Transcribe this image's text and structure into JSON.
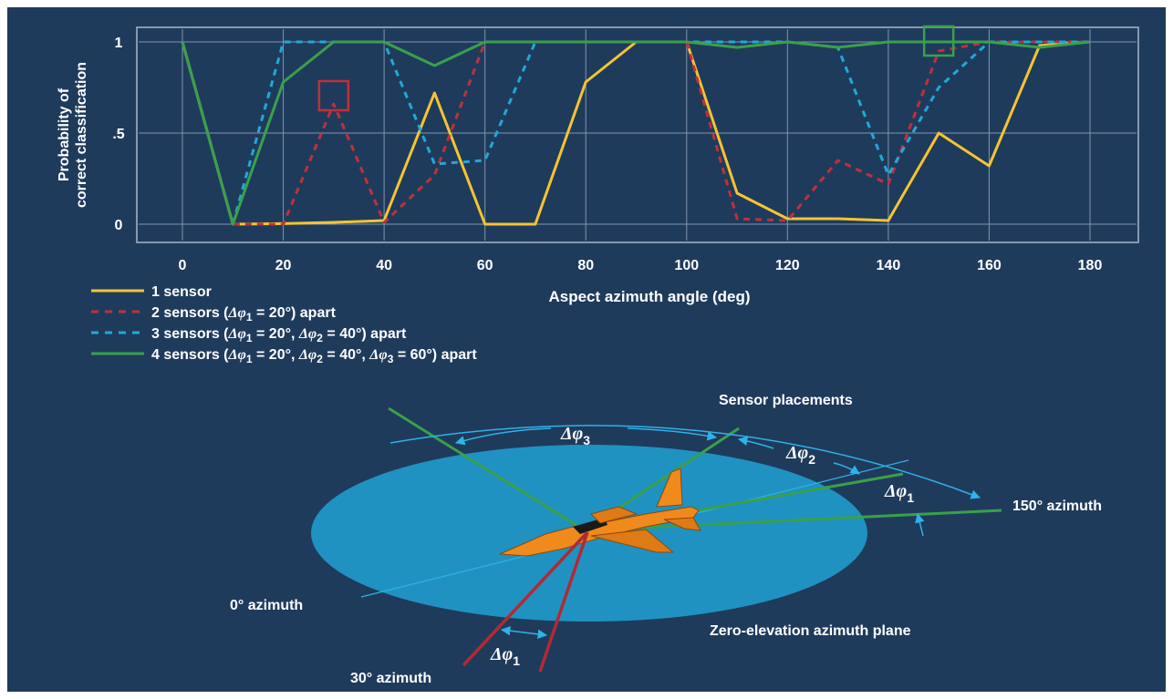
{
  "chart_data": {
    "type": "line",
    "ylabel_lines": [
      "Probability of",
      "correct classification"
    ],
    "xlabel": "Aspect azimuth angle (deg)",
    "ylim": [
      0,
      1
    ],
    "xlim": [
      0,
      180
    ],
    "x_ticks": [
      "0",
      "20",
      "40",
      "60",
      "80",
      "100",
      "120",
      "140",
      "160",
      "180"
    ],
    "y_ticks": [
      "0",
      ".5",
      "1"
    ],
    "grid": true,
    "series": [
      {
        "name": "1 sensor",
        "color": "#f4c433",
        "dash": "solid",
        "x": [
          0,
          10,
          20,
          30,
          40,
          50,
          60,
          70,
          80,
          90,
          100,
          110,
          120,
          130,
          140,
          150,
          160,
          170,
          180
        ],
        "y": [
          1,
          0,
          0.003,
          0.01,
          0.02,
          0.72,
          0,
          0,
          0.78,
          1,
          1,
          0.17,
          0.03,
          0.03,
          0.02,
          0.5,
          0.32,
          0.98,
          1
        ]
      },
      {
        "name": "2 sensors",
        "color": "#c0303a",
        "dash": "dashed",
        "x": [
          0,
          10,
          20,
          30,
          40,
          50,
          60,
          70,
          80,
          90,
          100,
          110,
          120,
          130,
          140,
          150,
          160,
          170,
          180
        ],
        "y": [
          1,
          0,
          0,
          0.66,
          0.01,
          0.27,
          1,
          1,
          1,
          1,
          1,
          0.03,
          0.02,
          0.35,
          0.22,
          0.95,
          1,
          1,
          1
        ]
      },
      {
        "name": "3 sensors",
        "color": "#21a8d8",
        "dash": "dashed",
        "x": [
          0,
          10,
          20,
          30,
          40,
          50,
          60,
          70,
          80,
          90,
          100,
          110,
          120,
          130,
          140,
          150,
          160,
          170,
          180
        ],
        "y": [
          1,
          0,
          1,
          1,
          1,
          0.33,
          0.35,
          1,
          1,
          1,
          1,
          1,
          1,
          0.97,
          0.27,
          0.75,
          1,
          1,
          1
        ]
      },
      {
        "name": "4 sensors",
        "color": "#3aa04a",
        "dash": "solid",
        "x": [
          0,
          10,
          20,
          30,
          40,
          50,
          60,
          70,
          80,
          90,
          100,
          110,
          120,
          130,
          140,
          150,
          160,
          170,
          180
        ],
        "y": [
          1,
          0,
          0.78,
          1,
          1,
          0.87,
          1,
          1,
          1,
          1,
          1,
          0.97,
          1,
          0.97,
          1,
          1,
          1,
          0.97,
          1
        ]
      }
    ],
    "legend": {
      "placement": "bottom-left",
      "entries": [
        {
          "series": 0,
          "text": "1 sensor"
        },
        {
          "series": 1,
          "pre": "2 sensors (",
          "p1_sym": "Δφ",
          "p1_sub": "1",
          "p1_val": " = 20°) apart"
        },
        {
          "series": 2,
          "pre": "3 sensors (",
          "p1_sym": "Δφ",
          "p1_sub": "1",
          "p1_val": " = 20°, ",
          "p2_sym": "Δφ",
          "p2_sub": "2",
          "p2_val": " = 40°) apart"
        },
        {
          "series": 3,
          "pre": "4 sensors (",
          "p1_sym": "Δφ",
          "p1_sub": "1",
          "p1_val": " = 20°, ",
          "p2_sym": "Δφ",
          "p2_sub": "2",
          "p2_val": " = 40°, ",
          "p3_sym": "Δφ",
          "p3_sub": "3",
          "p3_val": " = 60°) apart"
        }
      ]
    },
    "highlights": [
      {
        "x": 30,
        "y": 0.7,
        "color": "#c0303a"
      },
      {
        "x": 150,
        "y": 1.0,
        "color": "#3aa04a"
      }
    ]
  },
  "diagram": {
    "title": "Sensor placements",
    "plane_label": "Zero-elevation azimuth plane",
    "azimuth_labels": {
      "zero": "0° azimuth",
      "thirty": "30° azimuth",
      "one_fifty": "150° azimuth"
    },
    "delta_symbol": "Δφ",
    "delta_subs": {
      "one": "1",
      "two": "2",
      "three": "3"
    },
    "colors": {
      "plane": "#1f9ccc",
      "sensor_green": "#3aa04a",
      "sensor_red": "#b02a36",
      "arrow": "#2fb2e8",
      "aircraft": "#f08a1c",
      "background": "#1f3b5c"
    }
  }
}
